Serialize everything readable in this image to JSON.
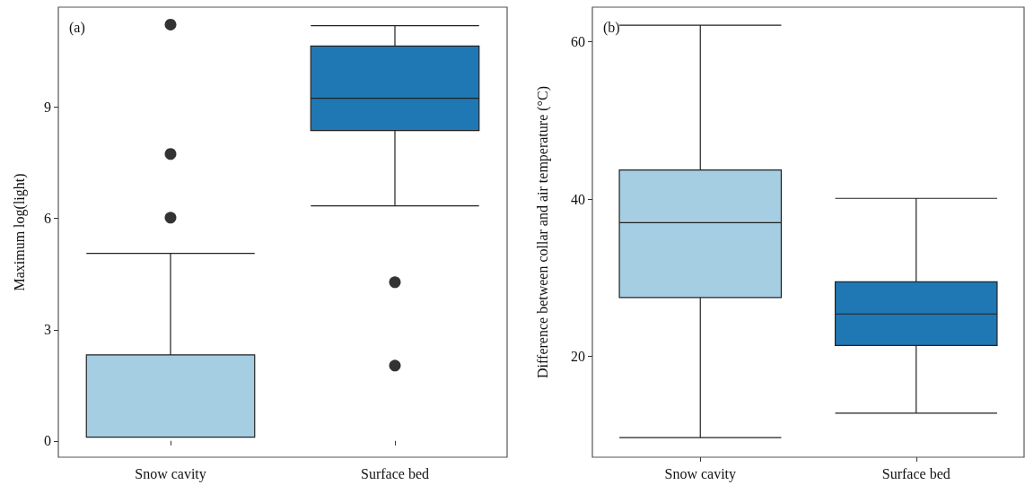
{
  "chart_data": [
    {
      "type": "box",
      "ylabel": "Maximum log(light)",
      "annotations": [
        "(a)"
      ],
      "categories": [
        "Snow cavity",
        "Surface bed"
      ],
      "colors": [
        "#a6cee3",
        "#1f78b4"
      ],
      "boxes": [
        {
          "low": 0.1,
          "q1": 0.1,
          "median": 0.1,
          "q3": 2.32,
          "high": 5.06,
          "outliers": [
            6.02,
            7.74,
            11.23
          ]
        },
        {
          "low": 6.34,
          "q1": 8.37,
          "median": 9.24,
          "q3": 10.65,
          "high": 11.2,
          "outliers": [
            2.03,
            4.28
          ]
        }
      ],
      "ylim": [
        -0.44,
        11.7
      ],
      "yticks": [
        0,
        3,
        6,
        9
      ],
      "grid": false
    },
    {
      "type": "box",
      "ylabel": "Difference between collar and air temperature (°C)",
      "annotations": [
        "(b)"
      ],
      "categories": [
        "Snow cavity",
        "Surface bed"
      ],
      "colors": [
        "#a6cee3",
        "#1f78b4"
      ],
      "boxes": [
        {
          "low": 9.7,
          "q1": 27.5,
          "median": 37.0,
          "q3": 43.7,
          "high": 62.1
        },
        {
          "low": 12.8,
          "q1": 21.4,
          "median": 25.4,
          "q3": 29.5,
          "high": 40.1
        }
      ],
      "ylim": [
        7.2,
        64.4
      ],
      "yticks": [
        20,
        40,
        60
      ],
      "grid": false
    }
  ]
}
